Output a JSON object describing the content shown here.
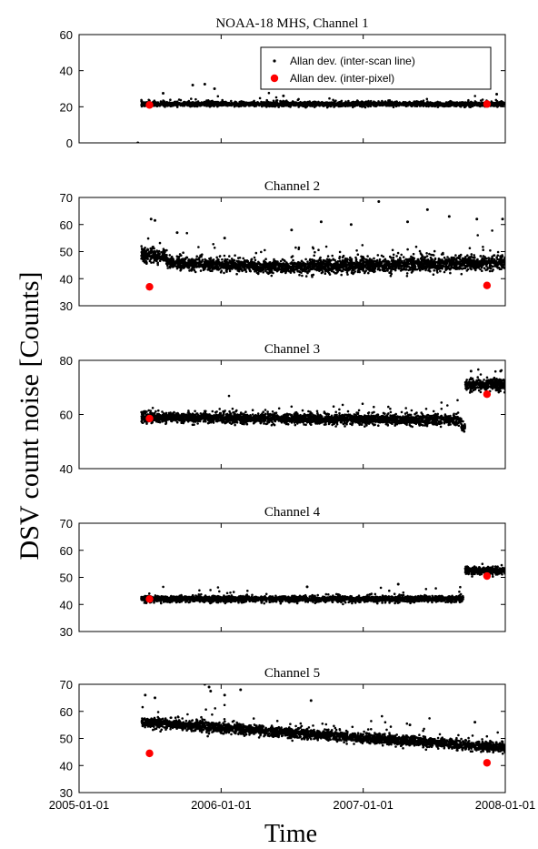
{
  "chart_data": {
    "type": "scatter",
    "ylabel": "DSV count noise [Counts]",
    "xlabel": "Time",
    "x_range": [
      "2005-01-01",
      "2008-01-01"
    ],
    "x_ticks": [
      "2005-01-01",
      "2006-01-01",
      "2007-01-01",
      "2008-01-01"
    ],
    "legend": {
      "placement": "top-right of first panel",
      "entries": [
        "Allan dev. (inter-scan line)",
        "Allan dev. (inter-pixel)"
      ]
    },
    "colors": {
      "inter_scan": "#000000",
      "inter_pixel": "#ff0000"
    },
    "panels": [
      {
        "title": "NOAA-18 MHS, Channel 1",
        "ylim": [
          0,
          60
        ],
        "yticks": [
          0,
          20,
          40,
          60
        ],
        "inter_scan_segments": [
          {
            "start": "2005-06-10",
            "end": "2008-01-01",
            "mean_start": 21.5,
            "mean_end": 21.5,
            "spread": 1.2
          }
        ],
        "inter_scan_outliers": [
          {
            "x": "2005-06-01",
            "y": 0
          },
          {
            "x": "2005-08-05",
            "y": 27.5
          },
          {
            "x": "2005-10-20",
            "y": 32
          },
          {
            "x": "2005-11-20",
            "y": 32.5
          },
          {
            "x": "2005-12-15",
            "y": 30
          },
          {
            "x": "2006-06-10",
            "y": 26
          },
          {
            "x": "2007-12-10",
            "y": 27
          }
        ],
        "inter_pixel": [
          {
            "x": "2005-07-01",
            "y": 21
          },
          {
            "x": "2007-11-15",
            "y": 21.5
          }
        ]
      },
      {
        "title": "Channel 2",
        "ylim": [
          30,
          70
        ],
        "yticks": [
          30,
          40,
          50,
          60,
          70
        ],
        "inter_scan_segments": [
          {
            "start": "2005-06-10",
            "end": "2005-08-15",
            "mean_start": 49,
            "mean_end": 48,
            "spread": 2.8
          },
          {
            "start": "2005-08-15",
            "end": "2006-07-01",
            "mean_start": 46,
            "mean_end": 44,
            "spread": 2.2
          },
          {
            "start": "2006-07-01",
            "end": "2008-01-01",
            "mean_start": 44.5,
            "mean_end": 46,
            "spread": 2.6
          }
        ],
        "inter_scan_outliers": [
          {
            "x": "2005-07-05",
            "y": 62
          },
          {
            "x": "2005-07-15",
            "y": 61.5
          },
          {
            "x": "2005-09-10",
            "y": 57
          },
          {
            "x": "2006-01-10",
            "y": 55
          },
          {
            "x": "2006-07-01",
            "y": 58
          },
          {
            "x": "2006-09-15",
            "y": 61
          },
          {
            "x": "2006-12-01",
            "y": 60
          },
          {
            "x": "2007-02-10",
            "y": 68.5
          },
          {
            "x": "2007-04-25",
            "y": 61
          },
          {
            "x": "2007-06-15",
            "y": 65.5
          },
          {
            "x": "2007-08-10",
            "y": 63
          },
          {
            "x": "2007-10-20",
            "y": 62
          },
          {
            "x": "2007-12-25",
            "y": 62
          }
        ],
        "inter_pixel": [
          {
            "x": "2005-07-01",
            "y": 37
          },
          {
            "x": "2007-11-15",
            "y": 37.5
          }
        ]
      },
      {
        "title": "Channel 3",
        "ylim": [
          40,
          80
        ],
        "yticks": [
          40,
          60,
          80
        ],
        "inter_scan_segments": [
          {
            "start": "2005-06-10",
            "end": "2007-09-10",
            "mean_start": 59,
            "mean_end": 58,
            "spread": 1.8
          },
          {
            "start": "2007-09-10",
            "end": "2007-09-20",
            "mean_start": 55,
            "mean_end": 55,
            "spread": 1.5
          },
          {
            "start": "2007-09-20",
            "end": "2008-01-01",
            "mean_start": 71,
            "mean_end": 71,
            "spread": 2.2
          }
        ],
        "inter_scan_outliers": [
          {
            "x": "2007-10-05",
            "y": 76
          },
          {
            "x": "2007-12-20",
            "y": 76
          }
        ],
        "inter_pixel": [
          {
            "x": "2005-07-01",
            "y": 58.5
          },
          {
            "x": "2007-11-15",
            "y": 67.5
          }
        ]
      },
      {
        "title": "Channel 4",
        "ylim": [
          30,
          70
        ],
        "yticks": [
          30,
          40,
          50,
          60,
          70
        ],
        "inter_scan_segments": [
          {
            "start": "2005-06-10",
            "end": "2007-09-15",
            "mean_start": 42,
            "mean_end": 42,
            "spread": 1.1
          },
          {
            "start": "2007-09-20",
            "end": "2008-01-01",
            "mean_start": 52.5,
            "mean_end": 52.5,
            "spread": 1.4
          }
        ],
        "inter_scan_outliers": [
          {
            "x": "2006-08-10",
            "y": 46.5
          },
          {
            "x": "2007-04-01",
            "y": 47.5
          }
        ],
        "inter_pixel": [
          {
            "x": "2005-07-01",
            "y": 42
          },
          {
            "x": "2007-11-15",
            "y": 50.5
          }
        ]
      },
      {
        "title": "Channel 5",
        "ylim": [
          30,
          70
        ],
        "yticks": [
          30,
          40,
          50,
          60,
          70
        ],
        "inter_scan_segments": [
          {
            "start": "2005-06-10",
            "end": "2008-01-01",
            "mean_start": 56,
            "mean_end": 46.5,
            "spread": 1.8
          }
        ],
        "inter_scan_outliers": [
          {
            "x": "2005-06-20",
            "y": 66
          },
          {
            "x": "2005-07-15",
            "y": 65
          },
          {
            "x": "2005-11-20",
            "y": 70
          },
          {
            "x": "2005-12-01",
            "y": 69
          },
          {
            "x": "2005-12-05",
            "y": 67.5
          },
          {
            "x": "2006-01-10",
            "y": 66
          },
          {
            "x": "2006-02-20",
            "y": 68
          },
          {
            "x": "2006-08-20",
            "y": 64
          },
          {
            "x": "2007-05-01",
            "y": 55
          },
          {
            "x": "2007-10-15",
            "y": 56
          }
        ],
        "inter_pixel": [
          {
            "x": "2005-07-01",
            "y": 44.5
          },
          {
            "x": "2007-11-15",
            "y": 41
          }
        ]
      }
    ]
  }
}
